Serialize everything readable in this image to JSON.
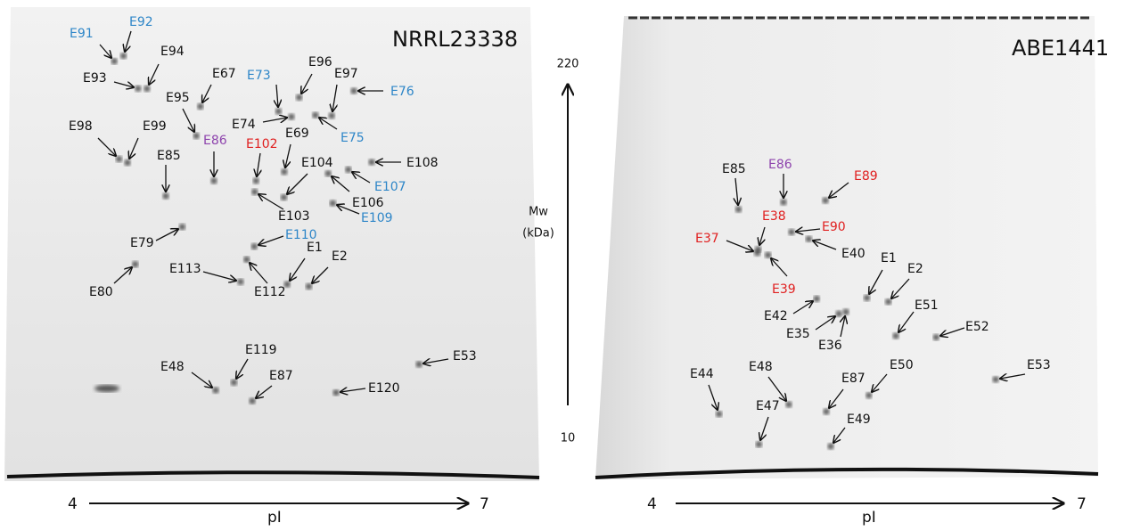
{
  "gels": [
    {
      "title": "NRRL23338",
      "spots": [
        {
          "text": "E91",
          "color": "#2e86c8"
        },
        {
          "text": "E92",
          "color": "#2e86c8"
        },
        {
          "text": "E94",
          "color": "#111111"
        },
        {
          "text": "E93",
          "color": "#111111"
        },
        {
          "text": "E67",
          "color": "#111111"
        },
        {
          "text": "E73",
          "color": "#2e86c8"
        },
        {
          "text": "E96",
          "color": "#111111"
        },
        {
          "text": "E97",
          "color": "#111111"
        },
        {
          "text": "E76",
          "color": "#2e86c8"
        },
        {
          "text": "E95",
          "color": "#111111"
        },
        {
          "text": "E74",
          "color": "#111111"
        },
        {
          "text": "E69",
          "color": "#111111"
        },
        {
          "text": "E75",
          "color": "#2e86c8"
        },
        {
          "text": "E98",
          "color": "#111111"
        },
        {
          "text": "E99",
          "color": "#111111"
        },
        {
          "text": "E86",
          "color": "#8e44ad"
        },
        {
          "text": "E102",
          "color": "#e02020"
        },
        {
          "text": "E85",
          "color": "#111111"
        },
        {
          "text": "E104",
          "color": "#111111"
        },
        {
          "text": "E108",
          "color": "#111111"
        },
        {
          "text": "E107",
          "color": "#2e86c8"
        },
        {
          "text": "E106",
          "color": "#111111"
        },
        {
          "text": "E103",
          "color": "#111111"
        },
        {
          "text": "E109",
          "color": "#2e86c8"
        },
        {
          "text": "E110",
          "color": "#2e86c8"
        },
        {
          "text": "E79",
          "color": "#111111"
        },
        {
          "text": "E1",
          "color": "#111111"
        },
        {
          "text": "E2",
          "color": "#111111"
        },
        {
          "text": "E113",
          "color": "#111111"
        },
        {
          "text": "E112",
          "color": "#111111"
        },
        {
          "text": "E80",
          "color": "#111111"
        },
        {
          "text": "E119",
          "color": "#111111"
        },
        {
          "text": "E48",
          "color": "#111111"
        },
        {
          "text": "E87",
          "color": "#111111"
        },
        {
          "text": "E53",
          "color": "#111111"
        },
        {
          "text": "E120",
          "color": "#111111"
        }
      ]
    },
    {
      "title": "ABE1441",
      "spots": [
        {
          "text": "E85",
          "color": "#111111"
        },
        {
          "text": "E86",
          "color": "#8e44ad"
        },
        {
          "text": "E89",
          "color": "#e02020"
        },
        {
          "text": "E38",
          "color": "#e02020"
        },
        {
          "text": "E90",
          "color": "#e02020"
        },
        {
          "text": "E37",
          "color": "#e02020"
        },
        {
          "text": "E40",
          "color": "#111111"
        },
        {
          "text": "E1",
          "color": "#111111"
        },
        {
          "text": "E2",
          "color": "#111111"
        },
        {
          "text": "E39",
          "color": "#e02020"
        },
        {
          "text": "E51",
          "color": "#111111"
        },
        {
          "text": "E42",
          "color": "#111111"
        },
        {
          "text": "E52",
          "color": "#111111"
        },
        {
          "text": "E35",
          "color": "#111111"
        },
        {
          "text": "E36",
          "color": "#111111"
        },
        {
          "text": "E44",
          "color": "#111111"
        },
        {
          "text": "E48",
          "color": "#111111"
        },
        {
          "text": "E50",
          "color": "#111111"
        },
        {
          "text": "E53",
          "color": "#111111"
        },
        {
          "text": "E87",
          "color": "#111111"
        },
        {
          "text": "E47",
          "color": "#111111"
        },
        {
          "text": "E49",
          "color": "#111111"
        }
      ]
    }
  ],
  "pi_axes": [
    {
      "start": "4",
      "end": "7",
      "label": "pI"
    },
    {
      "start": "4",
      "end": "7",
      "label": "pI"
    }
  ],
  "mw_axis": {
    "top": "220",
    "bottom": "10",
    "label": "Mw",
    "unit": "(kDa)"
  }
}
